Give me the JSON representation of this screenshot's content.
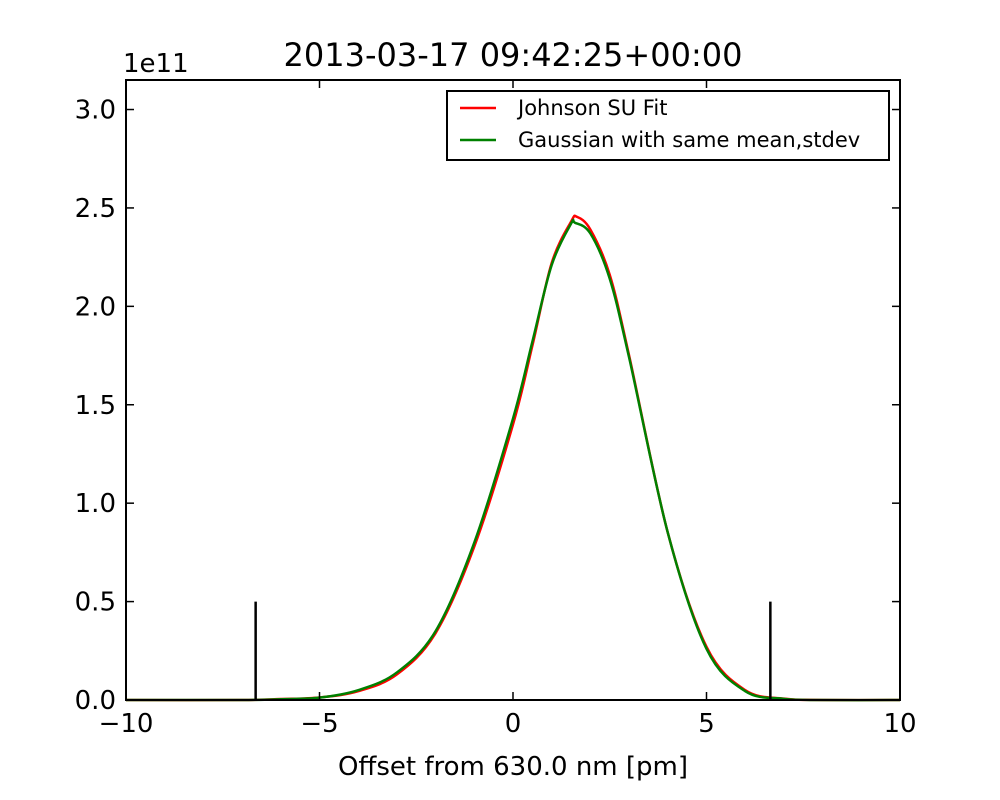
{
  "chart_data": {
    "type": "line",
    "title": "2013-03-17 09:42:25+00:00",
    "xlabel": "Offset from 630.0 nm [pm]",
    "ylabel": "",
    "y_multiplier": "1e11",
    "xlim": [
      -10,
      10
    ],
    "ylim": [
      0,
      3.15
    ],
    "x_ticks": [
      -10,
      -5,
      0,
      5,
      10
    ],
    "x_tick_labels": [
      "−10",
      "−5",
      "0",
      "5",
      "10"
    ],
    "y_ticks": [
      0.0,
      0.5,
      1.0,
      1.5,
      2.0,
      2.5,
      3.0
    ],
    "y_tick_labels": [
      "0.0",
      "0.5",
      "1.0",
      "1.5",
      "2.0",
      "2.5",
      "3.0"
    ],
    "grid": false,
    "legend_position": "top-right",
    "series": [
      {
        "name": "Johnson SU Fit",
        "color": "#ff0000",
        "x": [
          -10,
          -7,
          -6,
          -5,
          -4,
          -3,
          -2,
          -1,
          0,
          0.5,
          1.0,
          1.5,
          1.65,
          2.0,
          2.5,
          3.0,
          4.0,
          5.0,
          6.0,
          7.0,
          8.0,
          10
        ],
        "y": [
          0,
          0.0,
          0.005,
          0.013,
          0.045,
          0.13,
          0.34,
          0.78,
          1.4,
          1.8,
          2.22,
          2.43,
          2.455,
          2.39,
          2.16,
          1.75,
          0.85,
          0.27,
          0.05,
          0.007,
          0.0,
          0
        ]
      },
      {
        "name": "Gaussian with same mean,stdev",
        "color": "#008000",
        "x": [
          -10,
          -7,
          -6,
          -5,
          -4,
          -3,
          -2,
          -1,
          0,
          0.5,
          1.0,
          1.5,
          1.6,
          2.0,
          2.5,
          3.0,
          4.0,
          5.0,
          6.0,
          7.0,
          8.0,
          10
        ],
        "y": [
          0,
          0.0,
          0.004,
          0.012,
          0.05,
          0.14,
          0.35,
          0.8,
          1.43,
          1.82,
          2.21,
          2.42,
          2.425,
          2.37,
          2.14,
          1.74,
          0.85,
          0.26,
          0.045,
          0.006,
          0.0,
          0
        ]
      }
    ],
    "vertical_markers": [
      {
        "x": -6.65,
        "y": 0.5
      },
      {
        "x": 6.65,
        "y": 0.5
      }
    ]
  }
}
